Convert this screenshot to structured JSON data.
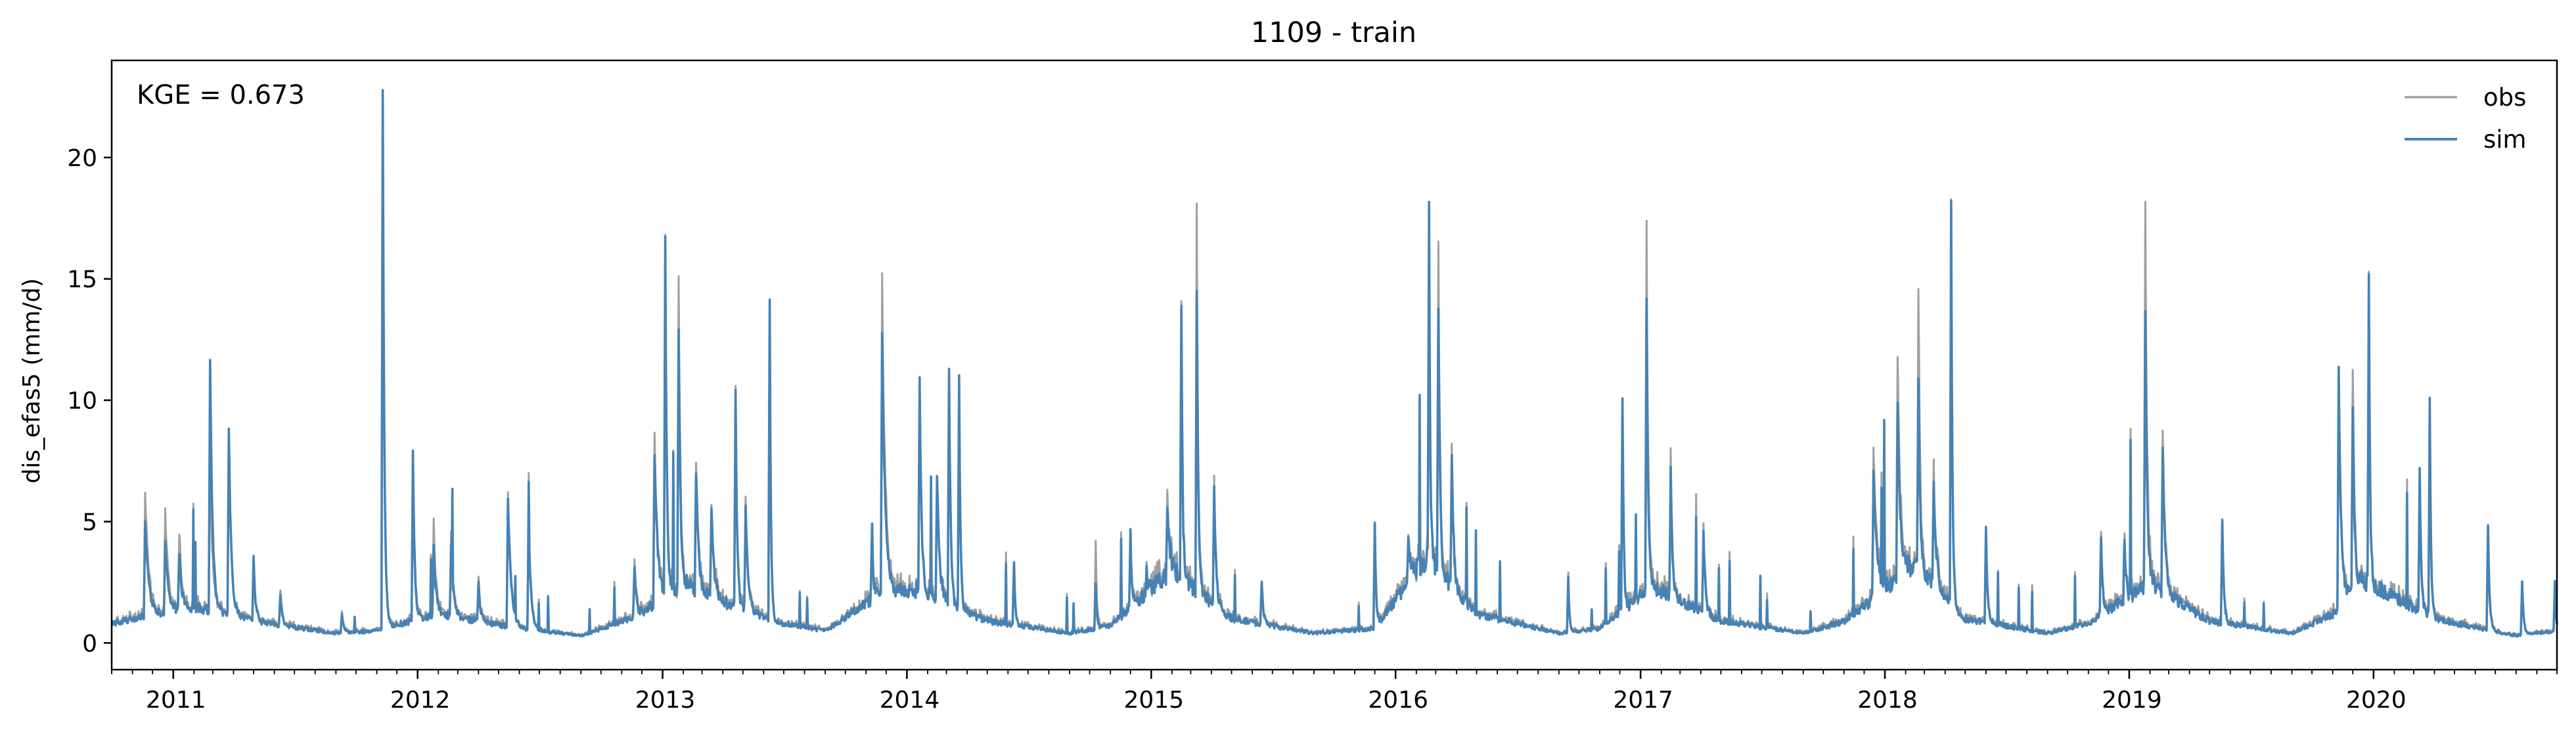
{
  "chart_data": {
    "type": "line",
    "title": "1109 - train",
    "xlabel": "",
    "ylabel": "dis_efas5 (mm/d)",
    "annotation": "KGE = 0.673",
    "xlim": [
      "2010-10-01",
      "2020-10-01"
    ],
    "ylim": [
      -1.1,
      24.0
    ],
    "yticks": [
      0,
      5,
      10,
      15,
      20
    ],
    "xticks": [
      "2011",
      "2012",
      "2013",
      "2014",
      "2015",
      "2016",
      "2017",
      "2018",
      "2019",
      "2020"
    ],
    "grid": false,
    "legend_position": "top-right",
    "colors": {
      "obs": "#a0a0a0",
      "sim": "#4682b4"
    },
    "baseflow": [
      [
        "2010-10-01",
        0.8
      ],
      [
        "2011-02-01",
        1.5
      ],
      [
        "2011-05-01",
        0.9
      ],
      [
        "2011-09-01",
        0.4
      ],
      [
        "2011-11-01",
        0.5
      ],
      [
        "2012-02-01",
        1.2
      ],
      [
        "2012-06-01",
        0.6
      ],
      [
        "2012-09-01",
        0.3
      ],
      [
        "2012-11-15",
        1.0
      ],
      [
        "2013-02-01",
        2.4
      ],
      [
        "2013-06-15",
        0.9
      ],
      [
        "2013-09-01",
        0.5
      ],
      [
        "2013-11-20",
        2.0
      ],
      [
        "2014-01-15",
        2.2
      ],
      [
        "2014-05-01",
        0.9
      ],
      [
        "2014-09-01",
        0.4
      ],
      [
        "2014-11-01",
        0.7
      ],
      [
        "2015-02-01",
        3.0
      ],
      [
        "2015-05-01",
        1.0
      ],
      [
        "2015-09-01",
        0.4
      ],
      [
        "2015-12-01",
        0.6
      ],
      [
        "2016-02-15",
        3.5
      ],
      [
        "2016-05-01",
        1.2
      ],
      [
        "2016-09-01",
        0.4
      ],
      [
        "2016-11-01",
        0.6
      ],
      [
        "2017-01-20",
        2.3
      ],
      [
        "2017-05-01",
        0.9
      ],
      [
        "2017-09-01",
        0.4
      ],
      [
        "2017-11-01",
        0.9
      ],
      [
        "2018-02-15",
        3.2
      ],
      [
        "2018-05-01",
        1.0
      ],
      [
        "2018-09-01",
        0.4
      ],
      [
        "2018-11-01",
        0.8
      ],
      [
        "2019-02-01",
        2.5
      ],
      [
        "2019-05-01",
        0.9
      ],
      [
        "2019-09-01",
        0.4
      ],
      [
        "2019-11-01",
        1.2
      ],
      [
        "2019-12-15",
        2.6
      ],
      [
        "2020-04-01",
        1.0
      ],
      [
        "2020-08-01",
        0.3
      ],
      [
        "2020-10-01",
        0.5
      ]
    ],
    "peaks": [
      {
        "date": "2010-11-20",
        "sim": 5.0,
        "obs": 6.0,
        "w": 12
      },
      {
        "date": "2010-12-20",
        "sim": 4.2,
        "obs": 5.4,
        "w": 10
      },
      {
        "date": "2011-01-10",
        "sim": 3.8,
        "obs": 4.5,
        "w": 8
      },
      {
        "date": "2011-02-25",
        "sim": 11.7,
        "obs": 7.5,
        "w": 8
      },
      {
        "date": "2011-03-25",
        "sim": 8.9,
        "obs": 8.6,
        "w": 8
      },
      {
        "date": "2011-05-01",
        "sim": 3.5,
        "obs": 3.4,
        "w": 6
      },
      {
        "date": "2011-06-10",
        "sim": 2.0,
        "obs": 2.1,
        "w": 6
      },
      {
        "date": "2011-09-10",
        "sim": 1.2,
        "obs": 1.3,
        "w": 5
      },
      {
        "date": "2011-11-10",
        "sim": 22.8,
        "obs": 22.6,
        "w": 5
      },
      {
        "date": "2011-12-25",
        "sim": 7.8,
        "obs": 6.1,
        "w": 6
      },
      {
        "date": "2012-01-25",
        "sim": 4.0,
        "obs": 5.0,
        "w": 8
      },
      {
        "date": "2012-02-20",
        "sim": 3.9,
        "obs": 4.2,
        "w": 8
      },
      {
        "date": "2012-04-01",
        "sim": 2.6,
        "obs": 2.8,
        "w": 6
      },
      {
        "date": "2012-05-15",
        "sim": 6.0,
        "obs": 6.3,
        "w": 10
      },
      {
        "date": "2012-06-15",
        "sim": 4.8,
        "obs": 5.0,
        "w": 8
      },
      {
        "date": "2012-11-20",
        "sim": 3.2,
        "obs": 3.5,
        "w": 6
      },
      {
        "date": "2012-12-20",
        "sim": 7.9,
        "obs": 8.9,
        "w": 10
      },
      {
        "date": "2013-01-05",
        "sim": 16.3,
        "obs": 16.1,
        "w": 5
      },
      {
        "date": "2013-01-25",
        "sim": 13.0,
        "obs": 15.3,
        "w": 6
      },
      {
        "date": "2013-02-20",
        "sim": 7.0,
        "obs": 7.2,
        "w": 8
      },
      {
        "date": "2013-03-15",
        "sim": 5.5,
        "obs": 5.6,
        "w": 8
      },
      {
        "date": "2013-04-20",
        "sim": 10.5,
        "obs": 10.4,
        "w": 5
      },
      {
        "date": "2013-05-05",
        "sim": 5.5,
        "obs": 5.7,
        "w": 8
      },
      {
        "date": "2013-06-10",
        "sim": 14.1,
        "obs": 13.8,
        "w": 4
      },
      {
        "date": "2013-11-10",
        "sim": 4.9,
        "obs": 4.7,
        "w": 4
      },
      {
        "date": "2013-11-25",
        "sim": 12.6,
        "obs": 15.1,
        "w": 10
      },
      {
        "date": "2014-01-20",
        "sim": 11.2,
        "obs": 11.0,
        "w": 6
      },
      {
        "date": "2014-02-15",
        "sim": 7.0,
        "obs": 6.6,
        "w": 8
      },
      {
        "date": "2014-03-05",
        "sim": 11.3,
        "obs": 10.8,
        "w": 5
      },
      {
        "date": "2014-03-20",
        "sim": 11.2,
        "obs": 11.0,
        "w": 4
      },
      {
        "date": "2014-06-10",
        "sim": 3.4,
        "obs": 3.2,
        "w": 4
      },
      {
        "date": "2014-10-10",
        "sim": 2.5,
        "obs": 4.2,
        "w": 4
      },
      {
        "date": "2014-12-01",
        "sim": 4.8,
        "obs": 4.6,
        "w": 4
      },
      {
        "date": "2014-12-25",
        "sim": 3.0,
        "obs": 3.2,
        "w": 6
      },
      {
        "date": "2015-01-25",
        "sim": 6.0,
        "obs": 6.5,
        "w": 8
      },
      {
        "date": "2015-02-15",
        "sim": 14.1,
        "obs": 14.4,
        "w": 4
      },
      {
        "date": "2015-03-10",
        "sim": 14.5,
        "obs": 17.7,
        "w": 5
      },
      {
        "date": "2015-04-05",
        "sim": 6.5,
        "obs": 7.0,
        "w": 6
      },
      {
        "date": "2015-06-15",
        "sim": 2.6,
        "obs": 2.5,
        "w": 5
      },
      {
        "date": "2015-12-01",
        "sim": 5.0,
        "obs": 4.8,
        "w": 4
      },
      {
        "date": "2016-01-20",
        "sim": 4.5,
        "obs": 4.4,
        "w": 8
      },
      {
        "date": "2016-02-20",
        "sim": 18.2,
        "obs": 17.8,
        "w": 4
      },
      {
        "date": "2016-03-05",
        "sim": 14.0,
        "obs": 16.5,
        "w": 5
      },
      {
        "date": "2016-03-25",
        "sim": 8.0,
        "obs": 8.2,
        "w": 6
      },
      {
        "date": "2016-09-15",
        "sim": 2.7,
        "obs": 2.8,
        "w": 4
      },
      {
        "date": "2016-12-05",
        "sim": 10.2,
        "obs": 10.0,
        "w": 4
      },
      {
        "date": "2017-01-10",
        "sim": 14.4,
        "obs": 17.5,
        "w": 5
      },
      {
        "date": "2017-02-15",
        "sim": 7.0,
        "obs": 7.4,
        "w": 6
      },
      {
        "date": "2017-04-05",
        "sim": 4.5,
        "obs": 4.6,
        "w": 6
      },
      {
        "date": "2017-12-15",
        "sim": 7.0,
        "obs": 8.0,
        "w": 12
      },
      {
        "date": "2018-01-20",
        "sim": 9.5,
        "obs": 11.0,
        "w": 10
      },
      {
        "date": "2018-02-20",
        "sim": 11.0,
        "obs": 14.8,
        "w": 6
      },
      {
        "date": "2018-03-15",
        "sim": 6.5,
        "obs": 7.0,
        "w": 8
      },
      {
        "date": "2018-04-10",
        "sim": 18.4,
        "obs": 18.2,
        "w": 4
      },
      {
        "date": "2018-06-01",
        "sim": 4.8,
        "obs": 4.8,
        "w": 5
      },
      {
        "date": "2018-11-20",
        "sim": 4.5,
        "obs": 4.7,
        "w": 5
      },
      {
        "date": "2018-12-25",
        "sim": 4.3,
        "obs": 4.5,
        "w": 5
      },
      {
        "date": "2019-01-25",
        "sim": 13.6,
        "obs": 17.9,
        "w": 6
      },
      {
        "date": "2019-02-20",
        "sim": 8.0,
        "obs": 8.5,
        "w": 8
      },
      {
        "date": "2019-05-20",
        "sim": 5.1,
        "obs": 5.0,
        "w": 5
      },
      {
        "date": "2019-11-10",
        "sim": 11.2,
        "obs": 10.8,
        "w": 8
      },
      {
        "date": "2019-12-01",
        "sim": 10.0,
        "obs": 11.6,
        "w": 6
      },
      {
        "date": "2019-12-25",
        "sim": 15.1,
        "obs": 14.8,
        "w": 4
      },
      {
        "date": "2020-03-10",
        "sim": 7.1,
        "obs": 6.8,
        "w": 5
      },
      {
        "date": "2020-03-25",
        "sim": 10.2,
        "obs": 9.9,
        "w": 4
      },
      {
        "date": "2020-06-20",
        "sim": 4.9,
        "obs": 4.6,
        "w": 5
      },
      {
        "date": "2020-08-10",
        "sim": 2.5,
        "obs": 2.4,
        "w": 5
      },
      {
        "date": "2020-09-28",
        "sim": 2.6,
        "obs": 2.4,
        "w": 3
      }
    ],
    "series": [
      {
        "name": "obs"
      },
      {
        "name": "sim"
      }
    ]
  }
}
